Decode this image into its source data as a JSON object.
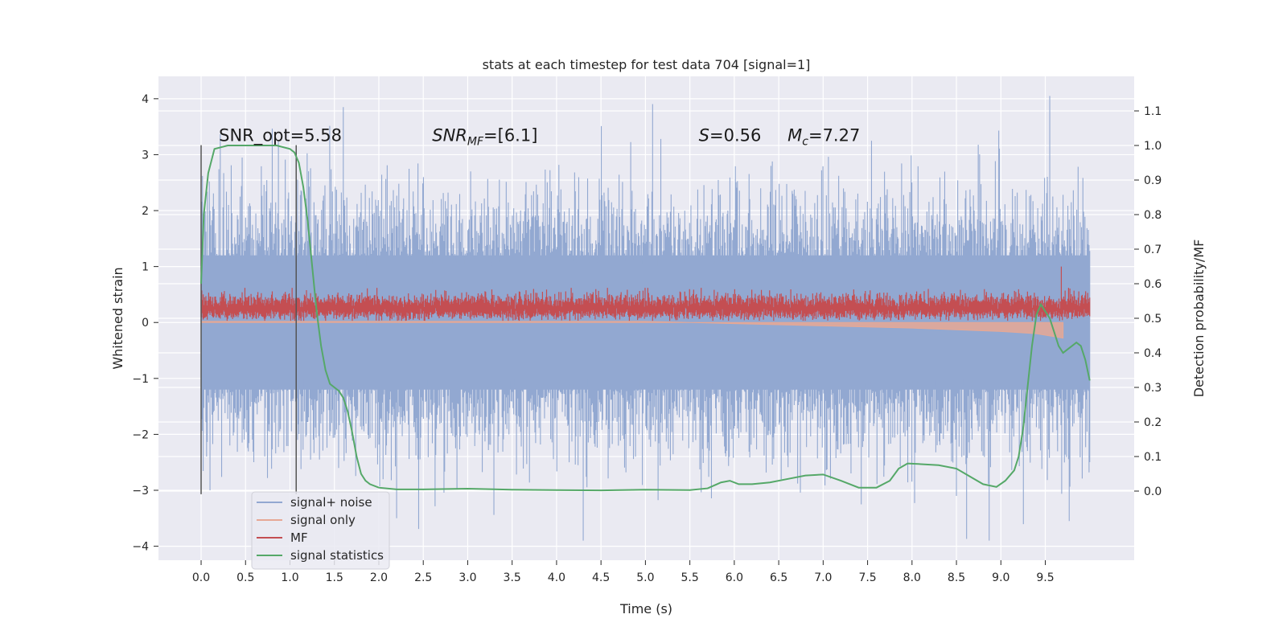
{
  "chart_data": {
    "type": "line",
    "title": "stats at each timestep for test data 704 [signal=1]",
    "xlabel": "Time (s)",
    "ylabel": "Whitened strain",
    "ylabel_right": "Detection probability/MF",
    "xlim": [
      -0.48,
      10.5
    ],
    "ylim": [
      -4.25,
      4.4
    ],
    "ylim_right": [
      -0.2,
      1.2
    ],
    "x_ticks": [
      "0.0",
      "0.5",
      "1.0",
      "1.5",
      "2.0",
      "2.5",
      "3.0",
      "3.5",
      "4.0",
      "4.5",
      "5.0",
      "5.5",
      "6.0",
      "6.5",
      "7.0",
      "7.5",
      "8.0",
      "8.5",
      "9.0",
      "9.5"
    ],
    "y_ticks": [
      "4",
      "3",
      "2",
      "1",
      "0",
      "−1",
      "−2",
      "−3",
      "−4"
    ],
    "y_ticks_right": [
      "1.1",
      "1.0",
      "0.9",
      "0.8",
      "0.7",
      "0.6",
      "0.5",
      "0.4",
      "0.3",
      "0.2",
      "0.1",
      "0.0"
    ],
    "grid": true,
    "legend_placement": "lower-left",
    "annotations": {
      "snr_opt": "SNR_opt=5.58",
      "snr_mf": "SNR",
      "snr_mf_sub": "MF",
      "snr_mf_val": "=[6.1]",
      "s_sym": "S",
      "s_val": "=0.56",
      "mc_sym": "M",
      "mc_sub": "c",
      "mc_val": "=7.27"
    },
    "vlines_x": [
      0.0,
      1.07
    ],
    "series": [
      {
        "name": "signal+ noise",
        "color": "#92a8d1",
        "description_values": {
          "x_range": [
            0,
            10
          ],
          "core_band": [
            -1.2,
            1.2
          ],
          "peak_max": 4.05,
          "peak_min": -3.9
        }
      },
      {
        "name": "signal only",
        "color": "#e6a895",
        "points": [
          [
            0.0,
            0.02
          ],
          [
            5.0,
            0.02
          ],
          [
            6.0,
            -0.02
          ],
          [
            7.0,
            -0.06
          ],
          [
            8.0,
            -0.1
          ],
          [
            8.5,
            -0.13
          ],
          [
            9.0,
            -0.16
          ],
          [
            9.4,
            -0.2
          ],
          [
            9.7,
            -0.28
          ]
        ]
      },
      {
        "name": "MF",
        "color": "#c44e52",
        "description_values": {
          "x_range": [
            0,
            10
          ],
          "band": [
            0.1,
            0.5
          ],
          "spike_x": 9.68,
          "spike_y": 1.0
        }
      },
      {
        "name": "signal statistics",
        "color": "#55a868",
        "axis": "right",
        "points": [
          [
            0.0,
            0.6
          ],
          [
            0.03,
            0.8
          ],
          [
            0.08,
            0.92
          ],
          [
            0.15,
            0.99
          ],
          [
            0.3,
            1.0
          ],
          [
            0.5,
            1.0
          ],
          [
            0.7,
            1.0
          ],
          [
            0.85,
            1.0
          ],
          [
            1.0,
            0.99
          ],
          [
            1.05,
            0.98
          ],
          [
            1.1,
            0.95
          ],
          [
            1.15,
            0.88
          ],
          [
            1.2,
            0.78
          ],
          [
            1.25,
            0.65
          ],
          [
            1.3,
            0.52
          ],
          [
            1.35,
            0.42
          ],
          [
            1.4,
            0.35
          ],
          [
            1.45,
            0.31
          ],
          [
            1.5,
            0.3
          ],
          [
            1.55,
            0.29
          ],
          [
            1.6,
            0.27
          ],
          [
            1.65,
            0.23
          ],
          [
            1.7,
            0.17
          ],
          [
            1.75,
            0.1
          ],
          [
            1.8,
            0.05
          ],
          [
            1.85,
            0.03
          ],
          [
            1.9,
            0.02
          ],
          [
            2.0,
            0.01
          ],
          [
            2.2,
            0.005
          ],
          [
            2.5,
            0.005
          ],
          [
            3.0,
            0.007
          ],
          [
            3.5,
            0.004
          ],
          [
            4.0,
            0.003
          ],
          [
            4.5,
            0.002
          ],
          [
            5.0,
            0.004
          ],
          [
            5.5,
            0.003
          ],
          [
            5.7,
            0.008
          ],
          [
            5.85,
            0.025
          ],
          [
            5.95,
            0.03
          ],
          [
            6.05,
            0.02
          ],
          [
            6.2,
            0.02
          ],
          [
            6.4,
            0.025
          ],
          [
            6.6,
            0.035
          ],
          [
            6.8,
            0.045
          ],
          [
            7.0,
            0.048
          ],
          [
            7.2,
            0.03
          ],
          [
            7.4,
            0.01
          ],
          [
            7.6,
            0.01
          ],
          [
            7.75,
            0.03
          ],
          [
            7.85,
            0.065
          ],
          [
            7.95,
            0.08
          ],
          [
            8.1,
            0.078
          ],
          [
            8.3,
            0.075
          ],
          [
            8.5,
            0.065
          ],
          [
            8.6,
            0.05
          ],
          [
            8.8,
            0.02
          ],
          [
            8.95,
            0.012
          ],
          [
            9.05,
            0.03
          ],
          [
            9.15,
            0.06
          ],
          [
            9.2,
            0.1
          ],
          [
            9.25,
            0.18
          ],
          [
            9.3,
            0.3
          ],
          [
            9.35,
            0.42
          ],
          [
            9.4,
            0.51
          ],
          [
            9.45,
            0.54
          ],
          [
            9.5,
            0.52
          ],
          [
            9.55,
            0.5
          ],
          [
            9.6,
            0.46
          ],
          [
            9.65,
            0.42
          ],
          [
            9.7,
            0.4
          ],
          [
            9.75,
            0.41
          ],
          [
            9.8,
            0.42
          ],
          [
            9.85,
            0.43
          ],
          [
            9.9,
            0.42
          ],
          [
            9.95,
            0.38
          ],
          [
            10.0,
            0.32
          ]
        ]
      }
    ]
  }
}
